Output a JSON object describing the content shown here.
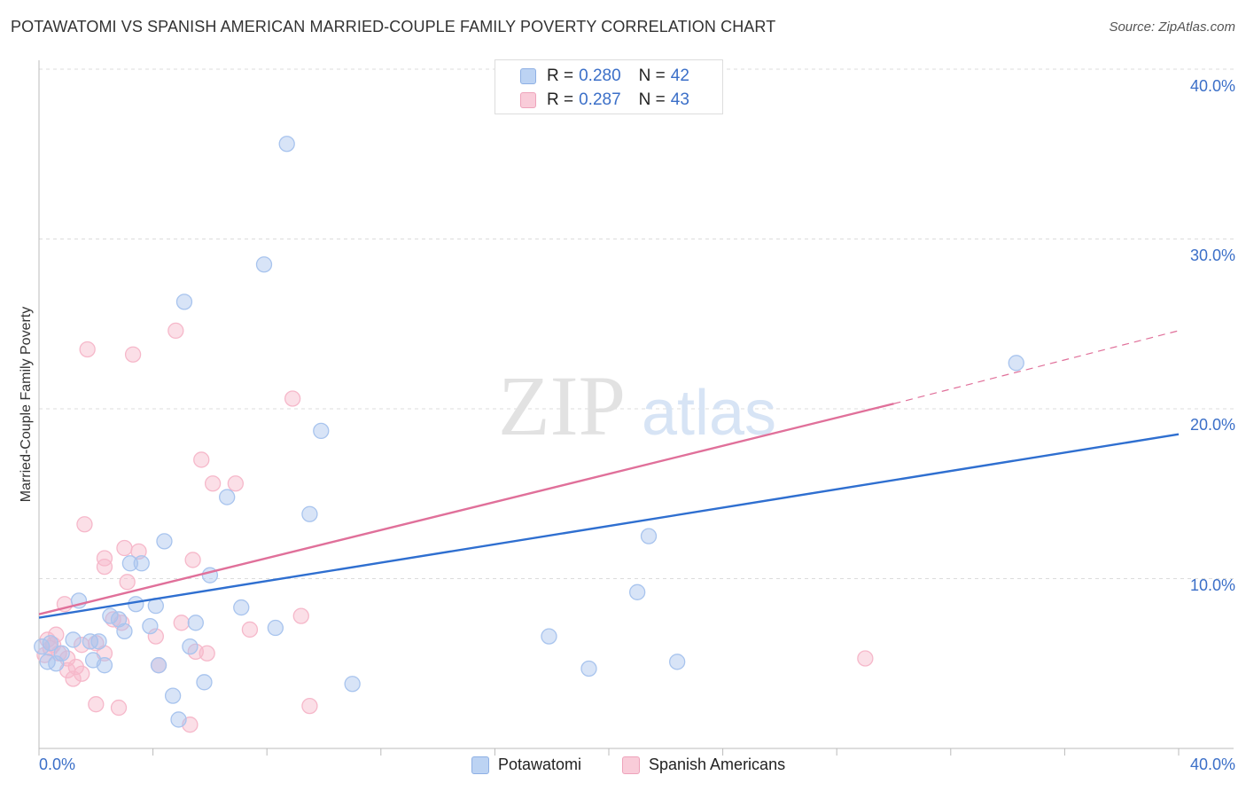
{
  "title": "POTAWATOMI VS SPANISH AMERICAN MARRIED-COUPLE FAMILY POVERTY CORRELATION CHART",
  "source": "Source: ZipAtlas.com",
  "legend": {
    "row1": {
      "r_label": "R =",
      "r_value": "0.280",
      "n_label": "N =",
      "n_value": "42"
    },
    "row2": {
      "r_label": "R =",
      "r_value": "0.287",
      "n_label": "N =",
      "n_value": "43"
    }
  },
  "bottom_legend": [
    "Potawatomi",
    "Spanish Americans"
  ],
  "watermark": {
    "zip": "ZIP",
    "atlas": "atlas"
  },
  "chart_data": {
    "type": "scatter",
    "ylabel": "Married-Couple Family Poverty",
    "xlim": [
      0,
      40
    ],
    "ylim": [
      0,
      40
    ],
    "x_tick_labels": [
      "0.0%",
      "40.0%"
    ],
    "y_ticks": [
      10,
      20,
      30,
      40
    ],
    "y_tick_labels": [
      "10.0%",
      "20.0%",
      "30.0%",
      "40.0%"
    ],
    "grid": true,
    "legend_position": "top-center",
    "series": [
      {
        "name": "Potawatomi",
        "color": "#a8c4ee",
        "line_color": "#2f6fd0",
        "trend": [
          [
            0,
            7.7
          ],
          [
            40,
            18.5
          ]
        ],
        "points": [
          [
            8.7,
            35.6
          ],
          [
            7.9,
            28.5
          ],
          [
            5.1,
            26.3
          ],
          [
            34.3,
            22.7
          ],
          [
            9.9,
            18.7
          ],
          [
            6.6,
            14.8
          ],
          [
            9.5,
            13.8
          ],
          [
            4.4,
            12.2
          ],
          [
            21.4,
            12.5
          ],
          [
            3.2,
            10.9
          ],
          [
            3.6,
            10.9
          ],
          [
            6.0,
            10.2
          ],
          [
            1.4,
            8.7
          ],
          [
            3.4,
            8.5
          ],
          [
            4.1,
            8.4
          ],
          [
            7.1,
            8.3
          ],
          [
            2.5,
            7.8
          ],
          [
            2.8,
            7.6
          ],
          [
            5.5,
            7.4
          ],
          [
            3.9,
            7.2
          ],
          [
            8.3,
            7.1
          ],
          [
            3.0,
            6.9
          ],
          [
            21.0,
            9.2
          ],
          [
            17.9,
            6.6
          ],
          [
            1.2,
            6.4
          ],
          [
            1.8,
            6.3
          ],
          [
            2.1,
            6.3
          ],
          [
            5.3,
            6.0
          ],
          [
            0.4,
            6.2
          ],
          [
            0.8,
            5.6
          ],
          [
            0.3,
            5.1
          ],
          [
            0.6,
            5.0
          ],
          [
            1.9,
            5.2
          ],
          [
            2.3,
            4.9
          ],
          [
            4.2,
            4.9
          ],
          [
            19.3,
            4.7
          ],
          [
            22.4,
            5.1
          ],
          [
            5.8,
            3.9
          ],
          [
            11.0,
            3.8
          ],
          [
            4.7,
            3.1
          ],
          [
            4.9,
            1.7
          ],
          [
            0.1,
            6.0
          ]
        ]
      },
      {
        "name": "Spanish Americans",
        "color": "#f6b8ca",
        "line_color": "#e0709a",
        "trend": [
          [
            0,
            7.9
          ],
          [
            30,
            20.3
          ]
        ],
        "trend_dashed": [
          [
            30,
            20.3
          ],
          [
            40,
            24.6
          ]
        ],
        "points": [
          [
            4.8,
            24.6
          ],
          [
            1.7,
            23.5
          ],
          [
            3.3,
            23.2
          ],
          [
            8.9,
            20.6
          ],
          [
            5.7,
            17.0
          ],
          [
            6.1,
            15.6
          ],
          [
            6.9,
            15.6
          ],
          [
            1.6,
            13.2
          ],
          [
            3.0,
            11.8
          ],
          [
            3.5,
            11.6
          ],
          [
            2.3,
            11.2
          ],
          [
            5.4,
            11.1
          ],
          [
            2.3,
            10.7
          ],
          [
            3.1,
            9.8
          ],
          [
            0.9,
            8.5
          ],
          [
            9.2,
            7.8
          ],
          [
            2.6,
            7.6
          ],
          [
            5.0,
            7.4
          ],
          [
            2.9,
            7.4
          ],
          [
            7.4,
            7.0
          ],
          [
            4.1,
            6.6
          ],
          [
            0.6,
            6.7
          ],
          [
            0.3,
            6.4
          ],
          [
            0.5,
            6.1
          ],
          [
            1.5,
            6.1
          ],
          [
            2.0,
            6.2
          ],
          [
            5.5,
            5.7
          ],
          [
            5.9,
            5.6
          ],
          [
            2.3,
            5.6
          ],
          [
            0.2,
            5.5
          ],
          [
            1.0,
            5.3
          ],
          [
            0.7,
            5.6
          ],
          [
            1.3,
            4.8
          ],
          [
            4.2,
            4.9
          ],
          [
            1.0,
            4.6
          ],
          [
            1.5,
            4.4
          ],
          [
            29.0,
            5.3
          ],
          [
            2.0,
            2.6
          ],
          [
            2.8,
            2.4
          ],
          [
            9.5,
            2.5
          ],
          [
            5.3,
            1.4
          ],
          [
            0.4,
            5.9
          ],
          [
            1.2,
            4.1
          ]
        ]
      }
    ]
  }
}
